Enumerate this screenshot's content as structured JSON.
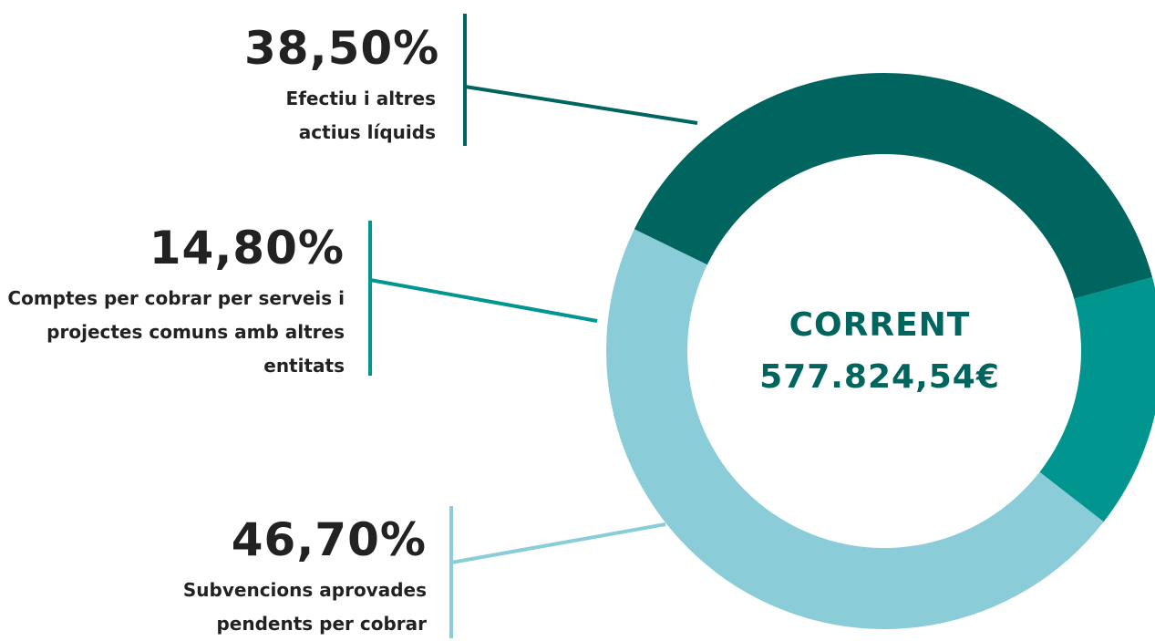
{
  "chart_data": {
    "type": "pie",
    "donut": true,
    "center_text": [
      "CORRENT",
      "577.824,54€"
    ],
    "categories": [
      "Efectiu i altres actius líquids",
      "Comptes per cobrar per serveis i projectes comuns amb altres entitats",
      "Subvencions aprovades pendents per cobrar"
    ],
    "values": [
      38.5,
      14.8,
      46.7
    ],
    "value_labels": [
      "38,50%",
      "14,80%",
      "46,70%"
    ],
    "colors": [
      "#00655e",
      "#00958f",
      "#8acdd8"
    ]
  }
}
